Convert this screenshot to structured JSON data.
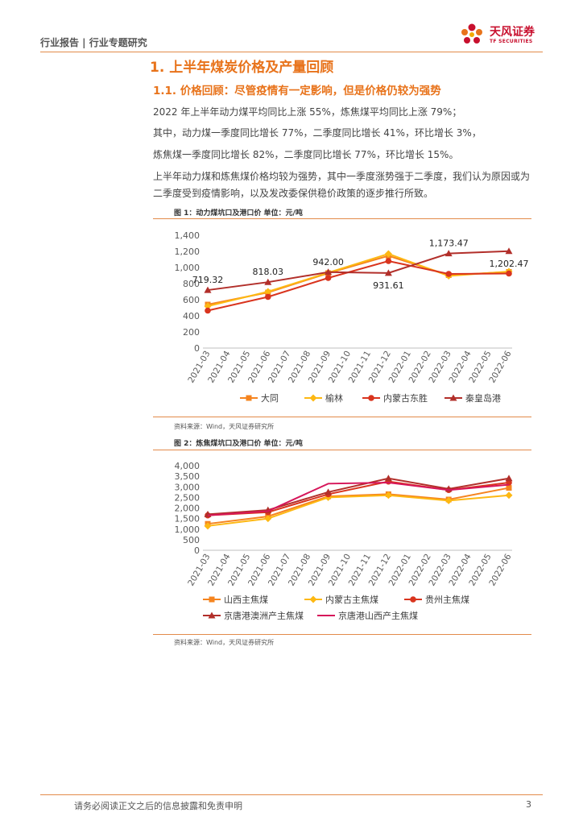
{
  "header": {
    "breadcrumb": "行业报告 | 行业专题研究",
    "logo_name": "天风证券",
    "logo_sub": "TF SECURITIES"
  },
  "section": {
    "h1": "1. 上半年煤炭价格及产量回顾",
    "h2": "1.1. 价格回顾：尽管疫情有一定影响，但是价格仍较为强势"
  },
  "paragraphs": [
    "2022 年上半年动力煤平均同比上涨 55%，炼焦煤平均同比上涨 79%；",
    "其中，动力煤一季度同比增长 77%，二季度同比增长 41%，环比增长 3%，",
    "炼焦煤一季度同比增长 82%，二季度同比增长 77%，环比增长 15%。",
    "上半年动力煤和炼焦煤价格均较为强势，其中一季度涨势强于二季度，我们认为原因或为",
    "二季度受到疫情影响，以及发改委保供稳价政策的逐步推行所致。"
  ],
  "figures": [
    {
      "title": "图 1：动力煤坑口及港口价 单位：元/吨",
      "source": "资料来源：Wind，天风证券研究所"
    },
    {
      "title": "图 2：炼焦煤坑口及港口价 单位：元/吨",
      "source": "资料来源：Wind，天风证券研究所"
    }
  ],
  "footer": {
    "disclaimer": "请务必阅读正文之后的信息披露和免责申明",
    "page": "3"
  },
  "chart_data": [
    {
      "type": "line",
      "title": "图 1：动力煤坑口及港口价 单位：元/吨",
      "categories": [
        "2021-03",
        "2021-04",
        "2021-05",
        "2021-06",
        "2021-07",
        "2021-08",
        "2021-09",
        "2021-10",
        "2021-11",
        "2021-12",
        "2022-01",
        "2022-02",
        "2022-03",
        "2022-04",
        "2022-05",
        "2022-06"
      ],
      "ylim": [
        0,
        1400
      ],
      "yticks": [
        0,
        200,
        400,
        600,
        800,
        1000,
        1200,
        1400
      ],
      "y_tick_labels": [
        "0",
        "200",
        "400",
        "600",
        "800",
        "1,000",
        "1,200",
        "1,400"
      ],
      "series": [
        {
          "name": "大同",
          "color": "#F5841F",
          "marker": "square",
          "points": [
            [
              0,
              540
            ],
            [
              3,
              690
            ],
            [
              6,
              930
            ],
            [
              9,
              1145
            ],
            [
              12,
              905
            ],
            [
              15,
              945
            ]
          ]
        },
        {
          "name": "榆林",
          "color": "#FDB813",
          "marker": "diamond",
          "points": [
            [
              0,
              520
            ],
            [
              3,
              700
            ],
            [
              6,
              935
            ],
            [
              9,
              1170
            ],
            [
              12,
              895
            ],
            [
              15,
              950
            ]
          ]
        },
        {
          "name": "内蒙古东胜",
          "color": "#D9341E",
          "marker": "circle",
          "points": [
            [
              0,
              465
            ],
            [
              3,
              635
            ],
            [
              6,
              870
            ],
            [
              9,
              1080
            ],
            [
              12,
              920
            ],
            [
              15,
              925
            ]
          ]
        },
        {
          "name": "秦皇岛港",
          "color": "#B22F2A",
          "marker": "triangle",
          "points": [
            [
              0,
              719.32
            ],
            [
              3,
              818.03
            ],
            [
              6,
              942.0
            ],
            [
              9,
              931.61
            ],
            [
              12,
              1173.47
            ],
            [
              15,
              1202.47
            ]
          ]
        }
      ],
      "annotations": [
        {
          "series": 3,
          "point": 0,
          "text": "719.32",
          "pos": "above"
        },
        {
          "series": 3,
          "point": 1,
          "text": "818.03",
          "pos": "above"
        },
        {
          "series": 3,
          "point": 2,
          "text": "942.00",
          "pos": "above"
        },
        {
          "series": 3,
          "point": 3,
          "text": "931.61",
          "pos": "below"
        },
        {
          "series": 3,
          "point": 4,
          "text": "1,173.47",
          "pos": "above"
        },
        {
          "series": 3,
          "point": 5,
          "text": "1,202.47",
          "pos": "below"
        }
      ],
      "legend_position": "bottom"
    },
    {
      "type": "line",
      "title": "图 2：炼焦煤坑口及港口价 单位：元/吨",
      "categories": [
        "2021-03",
        "2021-04",
        "2021-05",
        "2021-06",
        "2021-07",
        "2021-08",
        "2021-09",
        "2021-10",
        "2021-11",
        "2021-12",
        "2022-01",
        "2022-02",
        "2022-03",
        "2022-04",
        "2022-05",
        "2022-06"
      ],
      "ylim": [
        0,
        4000
      ],
      "yticks": [
        0,
        500,
        1000,
        1500,
        2000,
        2500,
        3000,
        3500,
        4000
      ],
      "y_tick_labels": [
        "0",
        "500",
        "1,000",
        "1,500",
        "2,000",
        "2,500",
        "3,000",
        "3,500",
        "4,000"
      ],
      "series": [
        {
          "name": "山西主焦煤",
          "color": "#F5841F",
          "marker": "square",
          "points": [
            [
              0,
              1250
            ],
            [
              3,
              1600
            ],
            [
              6,
              2550
            ],
            [
              9,
              2650
            ],
            [
              12,
              2400
            ],
            [
              15,
              2950
            ]
          ]
        },
        {
          "name": "内蒙古主焦煤",
          "color": "#FDB813",
          "marker": "diamond",
          "points": [
            [
              0,
              1150
            ],
            [
              3,
              1500
            ],
            [
              6,
              2500
            ],
            [
              9,
              2600
            ],
            [
              12,
              2350
            ],
            [
              15,
              2600
            ]
          ]
        },
        {
          "name": "贵州主焦煤",
          "color": "#D9341E",
          "marker": "circle",
          "points": [
            [
              0,
              1650
            ],
            [
              3,
              1800
            ],
            [
              6,
              2650
            ],
            [
              9,
              3250
            ],
            [
              12,
              2850
            ],
            [
              15,
              3200
            ]
          ]
        },
        {
          "name": "京唐港澳洲产主焦煤",
          "color": "#B22F2A",
          "marker": "triangle",
          "points": [
            [
              0,
              1700
            ],
            [
              3,
              1900
            ],
            [
              6,
              2750
            ],
            [
              9,
              3400
            ],
            [
              12,
              2900
            ],
            [
              15,
              3400
            ]
          ]
        },
        {
          "name": "京唐港山西产主焦煤",
          "color": "#D6165A",
          "marker": "none",
          "points": [
            [
              0,
              1650
            ],
            [
              3,
              1850
            ],
            [
              6,
              3150
            ],
            [
              9,
              3200
            ],
            [
              12,
              2850
            ],
            [
              15,
              3100
            ]
          ]
        }
      ],
      "legend_position": "bottom"
    }
  ]
}
